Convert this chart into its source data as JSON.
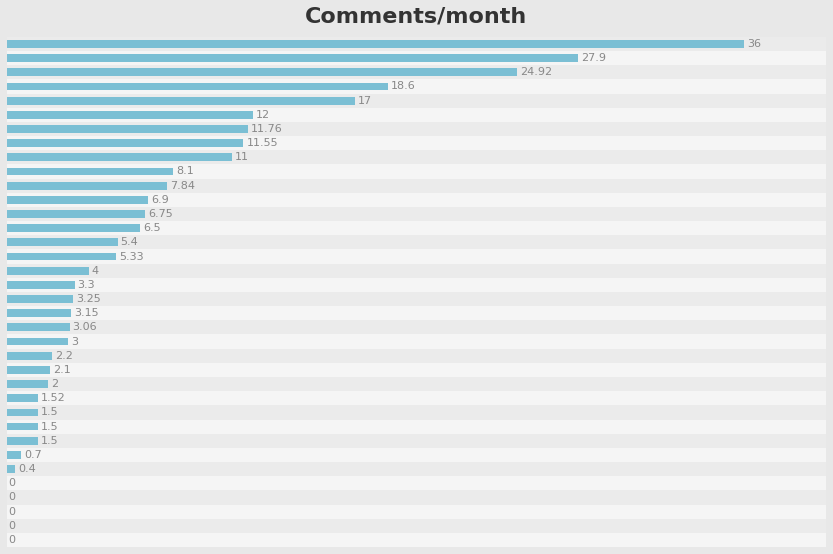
{
  "title": "Comments/month",
  "values": [
    36,
    27.9,
    24.92,
    18.6,
    17,
    12,
    11.76,
    11.55,
    11,
    8.1,
    7.84,
    6.9,
    6.75,
    6.5,
    5.4,
    5.33,
    4,
    3.3,
    3.25,
    3.15,
    3.06,
    3,
    2.2,
    2.1,
    2,
    1.52,
    1.5,
    1.5,
    1.5,
    0.7,
    0.4,
    0,
    0,
    0,
    0,
    0
  ],
  "bar_color": "#7bbfd4",
  "background_color": "#e8e8e8",
  "row_color_odd": "#ebebeb",
  "row_color_even": "#f5f5f5",
  "title_fontsize": 16,
  "label_fontsize": 8,
  "label_color": "#888888",
  "bar_height": 0.55,
  "xlim": [
    0,
    40
  ]
}
